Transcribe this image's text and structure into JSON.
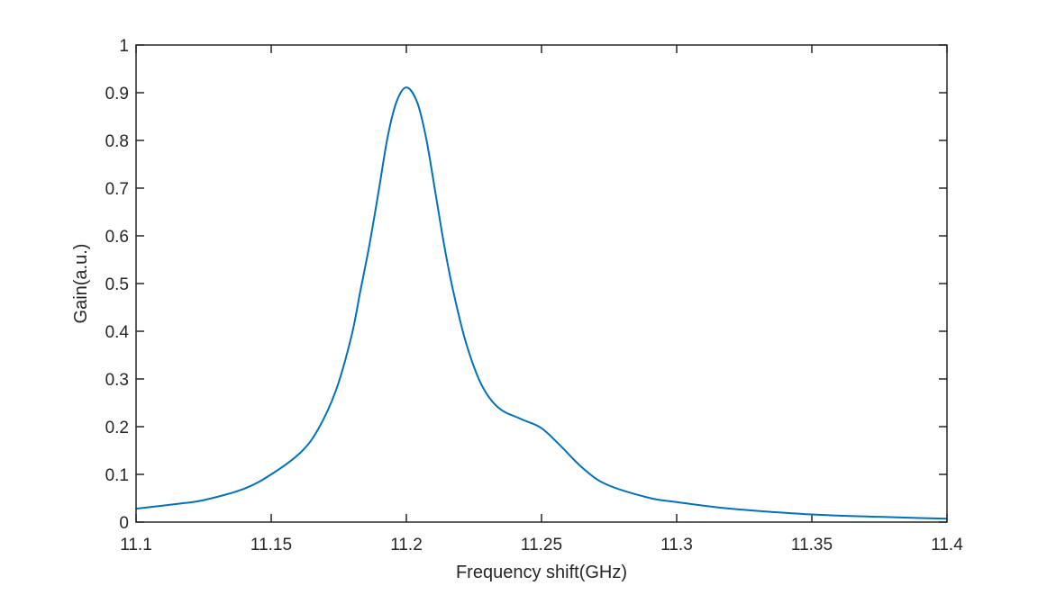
{
  "chart_data": {
    "type": "line",
    "title": "",
    "xlabel": "Frequency shift(GHz)",
    "ylabel": "Gain(a.u.)",
    "xlim": [
      11.1,
      11.4
    ],
    "ylim": [
      0,
      1
    ],
    "grid": false,
    "xticks": [
      11.1,
      11.15,
      11.2,
      11.25,
      11.3,
      11.35,
      11.4
    ],
    "xtick_labels": [
      "11.1",
      "11.15",
      "11.2",
      "11.25",
      "11.3",
      "11.35",
      "11.4"
    ],
    "yticks": [
      0,
      0.1,
      0.2,
      0.3,
      0.4,
      0.5,
      0.6,
      0.7,
      0.8,
      0.9,
      1
    ],
    "ytick_labels": [
      "0",
      "0.1",
      "0.2",
      "0.3",
      "0.4",
      "0.5",
      "0.6",
      "0.7",
      "0.8",
      "0.9",
      "1"
    ],
    "series": [
      {
        "name": "Gain",
        "color": "#0072BD",
        "x": [
          11.1,
          11.115,
          11.125,
          11.14,
          11.15,
          11.1607,
          11.1673,
          11.174,
          11.1797,
          11.183,
          11.1863,
          11.1897,
          11.193,
          11.1963,
          11.2,
          11.204,
          11.2073,
          11.2107,
          11.214,
          11.2173,
          11.222,
          11.2277,
          11.234,
          11.242,
          11.2497,
          11.2563,
          11.2653,
          11.274,
          11.2897,
          11.3,
          11.32,
          11.35,
          11.375,
          11.4
        ],
        "y": [
          0.028,
          0.038,
          0.046,
          0.07,
          0.1,
          0.145,
          0.194,
          0.277,
          0.39,
          0.485,
          0.58,
          0.692,
          0.805,
          0.88,
          0.911,
          0.88,
          0.805,
          0.692,
          0.58,
          0.485,
          0.377,
          0.289,
          0.24,
          0.217,
          0.198,
          0.164,
          0.113,
          0.079,
          0.051,
          0.042,
          0.028,
          0.016,
          0.011,
          0.007
        ]
      }
    ]
  }
}
